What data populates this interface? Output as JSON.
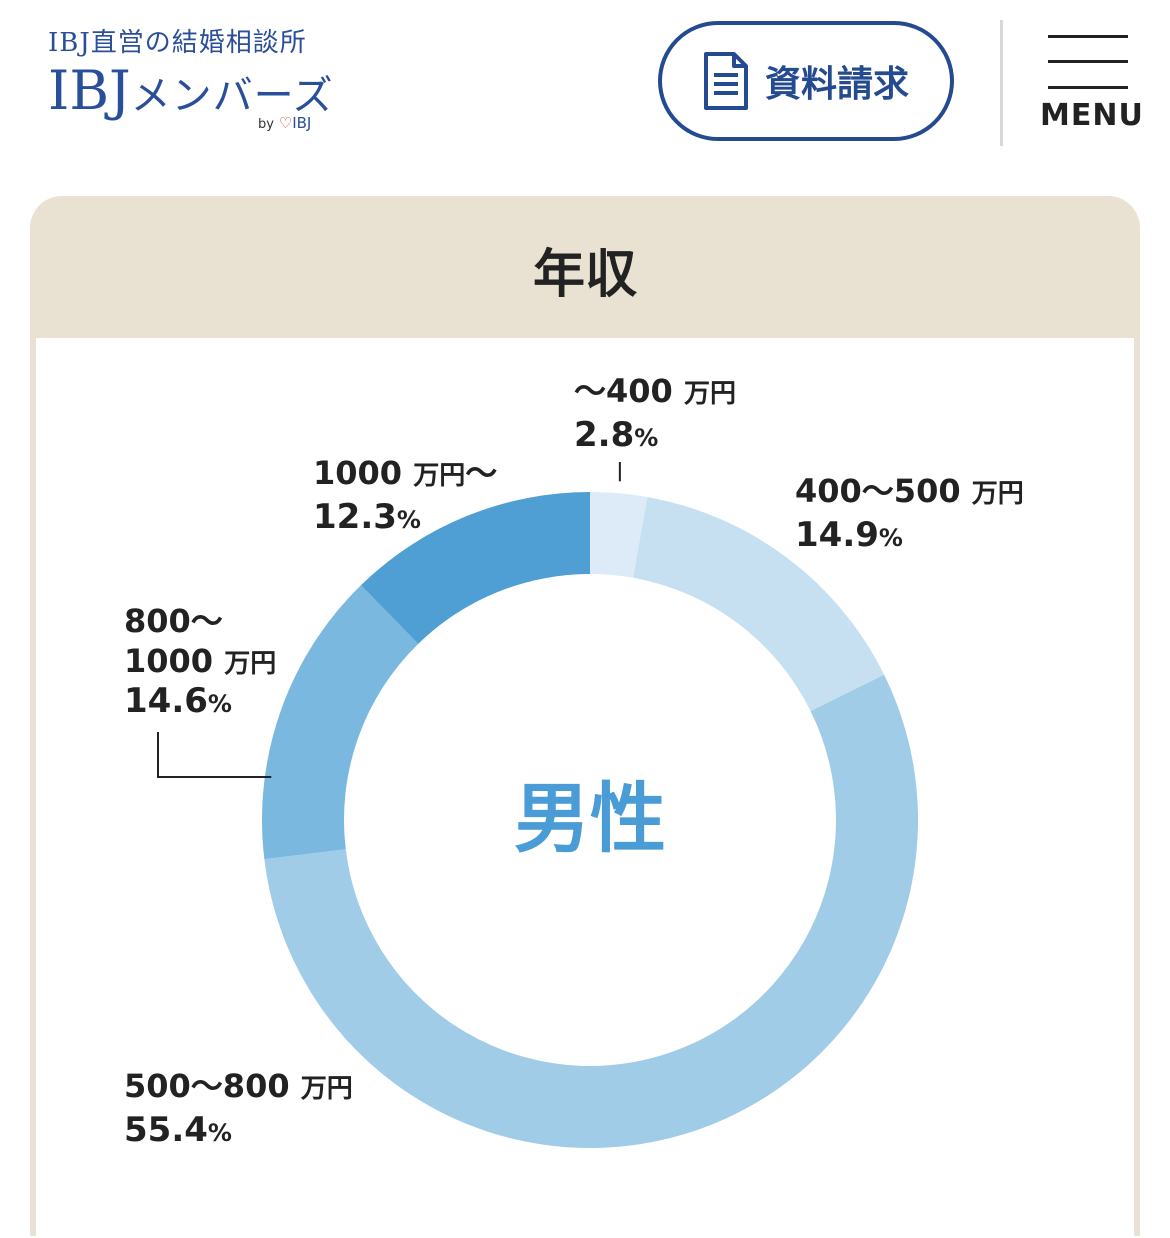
{
  "header": {
    "logo_tagline": "IBJ直営の結婚相談所",
    "logo_ibj": "IBJ",
    "logo_kana": "メンバーズ",
    "logo_by": "by",
    "logo_by_heart": "♡",
    "logo_by_brand": "IBJ",
    "doc_request_label": "資料請求",
    "menu_label": "MENU"
  },
  "card": {
    "title": "年収"
  },
  "chart_data": {
    "type": "pie",
    "style": "donut",
    "title": "年収",
    "center_label": "男性",
    "unit": "%",
    "categories": [
      "〜400 万円",
      "400〜500 万円",
      "500〜800 万円",
      "800〜1000 万円",
      "1000 万円〜"
    ],
    "values": [
      2.8,
      14.9,
      55.4,
      14.6,
      12.3
    ],
    "colors": [
      "#dcebf7",
      "#c6e0f2",
      "#a0cce7",
      "#7ab8e0",
      "#4f9fd5"
    ],
    "labels": [
      {
        "lines": [
          "〜400",
          "万円"
        ],
        "pct": "2.8"
      },
      {
        "lines": [
          "400〜500",
          "万円"
        ],
        "pct": "14.9"
      },
      {
        "lines": [
          "500〜800",
          "万円"
        ],
        "pct": "55.4"
      },
      {
        "lines": [
          "800〜",
          "1000",
          "万円"
        ],
        "pct": "14.6"
      },
      {
        "lines": [
          "1000",
          "万円〜"
        ],
        "pct": "12.3"
      }
    ]
  }
}
